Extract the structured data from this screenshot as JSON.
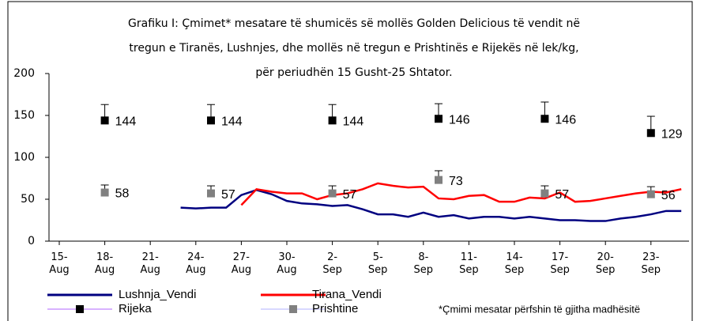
{
  "chart_data": {
    "type": "line",
    "title": [
      "Grafiku I: Çmimet* mesatare të shumicës së mollës Golden Delicious të vendit në",
      "tregun e Tiranës, Lushnjes, dhe mollës në tregun e Prishtinës e Rijekës në lek/kg,",
      "për periudhën 15 Gusht-25 Shtator."
    ],
    "footnote": "*Çmimi mesatar përfshin të gjitha madhësitë",
    "categories": [
      "15-Aug",
      null,
      null,
      "18-Aug",
      null,
      null,
      "21-Aug",
      null,
      null,
      "24-Aug",
      null,
      null,
      "27-Aug",
      null,
      null,
      "30-Aug",
      null,
      null,
      "2-Sep",
      null,
      null,
      "5-Sep",
      null,
      null,
      "8-Sep",
      null,
      null,
      "11-Sep",
      null,
      null,
      "14-Sep",
      null,
      null,
      "17-Sep",
      null,
      null,
      "20-Sep",
      null,
      null,
      "23-Sep",
      null,
      null
    ],
    "ylim": [
      0,
      200
    ],
    "yticks": [
      0,
      50,
      100,
      150,
      200
    ],
    "grid": false,
    "series": [
      {
        "name": "Lushnja_Vendi",
        "color": "#000080",
        "values": [
          null,
          null,
          null,
          null,
          null,
          null,
          null,
          null,
          40,
          39,
          40,
          40,
          55,
          61,
          56,
          48,
          45,
          44,
          42,
          43,
          38,
          32,
          32,
          29,
          34,
          29,
          31,
          27,
          29,
          29,
          27,
          29,
          27,
          25,
          25,
          24,
          24,
          27,
          29,
          32,
          36,
          36
        ]
      },
      {
        "name": "Tirana_Vendi",
        "color": "#ff0000",
        "values": [
          null,
          null,
          null,
          null,
          null,
          null,
          null,
          null,
          null,
          null,
          null,
          null,
          43,
          62,
          59,
          57,
          57,
          50,
          55,
          57,
          62,
          69,
          66,
          64,
          65,
          51,
          50,
          54,
          55,
          47,
          47,
          52,
          51,
          58,
          47,
          48,
          51,
          54,
          57,
          59,
          58,
          62
        ]
      },
      {
        "name": "Rijeka",
        "color": "#000000",
        "legend_line_color": "#cc99ff",
        "marker": "square",
        "values": [
          null,
          null,
          null,
          144,
          null,
          null,
          null,
          null,
          null,
          null,
          144,
          null,
          null,
          null,
          null,
          null,
          null,
          null,
          144,
          null,
          null,
          null,
          null,
          null,
          null,
          146,
          null,
          null,
          null,
          null,
          null,
          null,
          146,
          null,
          null,
          null,
          null,
          null,
          null,
          129,
          null,
          null
        ],
        "errors": [
          null,
          null,
          null,
          19,
          null,
          null,
          null,
          null,
          null,
          null,
          19,
          null,
          null,
          null,
          null,
          null,
          null,
          null,
          19,
          null,
          null,
          null,
          null,
          null,
          null,
          18,
          null,
          null,
          null,
          null,
          null,
          null,
          20,
          null,
          null,
          null,
          null,
          null,
          null,
          20,
          null,
          null
        ]
      },
      {
        "name": "Prishtine",
        "color": "#808080",
        "legend_line_color": "#ccccff",
        "marker": "square",
        "values": [
          null,
          null,
          null,
          58,
          null,
          null,
          null,
          null,
          null,
          null,
          57,
          null,
          null,
          null,
          null,
          null,
          null,
          null,
          57,
          null,
          null,
          null,
          null,
          null,
          null,
          73,
          null,
          null,
          null,
          null,
          null,
          null,
          57,
          null,
          null,
          null,
          null,
          null,
          null,
          56,
          null,
          null
        ],
        "errors": [
          null,
          null,
          null,
          9,
          null,
          null,
          null,
          null,
          null,
          null,
          9,
          null,
          null,
          null,
          null,
          null,
          null,
          null,
          9,
          null,
          null,
          null,
          null,
          null,
          null,
          11,
          null,
          null,
          null,
          null,
          null,
          null,
          9,
          null,
          null,
          null,
          null,
          null,
          null,
          9,
          null,
          null
        ]
      }
    ]
  }
}
